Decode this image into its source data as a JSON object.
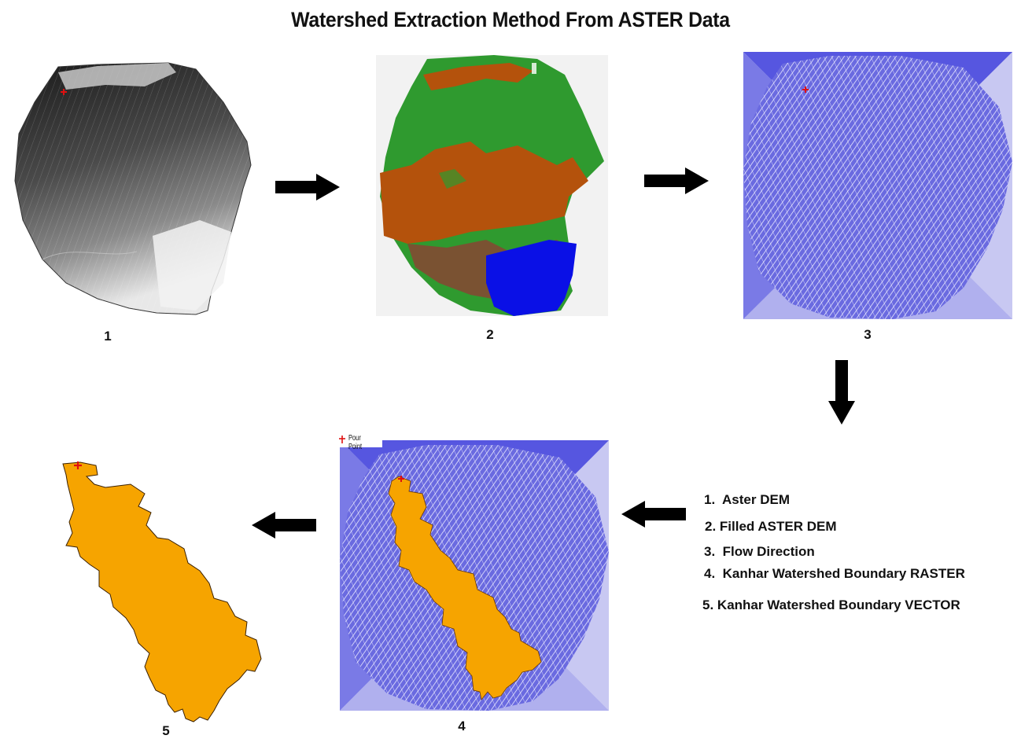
{
  "title": "Watershed Extraction Method From ASTER Data",
  "panels": [
    {
      "number": "1"
    },
    {
      "number": "2"
    },
    {
      "number": "3"
    },
    {
      "number": "4",
      "pour_point_label": "Pour Point"
    },
    {
      "number": "5"
    }
  ],
  "legend": [
    {
      "num": "1.",
      "text": "Aster DEM"
    },
    {
      "num": "2.",
      "text": "Filled ASTER DEM"
    },
    {
      "num": "3.",
      "text": "Flow Direction"
    },
    {
      "num": "4.",
      "text": "Kanhar Watershed Boundary RASTER"
    },
    {
      "num": "5.",
      "text": "Kanhar Watershed Boundary VECTOR"
    }
  ],
  "colors": {
    "flow_blue": "#5a5ad8",
    "watershed_orange": "#f6a400",
    "fill_green": "#2f9a2f",
    "fill_rust": "#b4520c",
    "fill_brown": "#7a5232",
    "fill_blue": "#0a10e6",
    "pour_point_red": "#e01010"
  },
  "icons": [
    "pour-point-icon",
    "arrow-right-icon",
    "arrow-down-icon",
    "arrow-left-icon"
  ]
}
